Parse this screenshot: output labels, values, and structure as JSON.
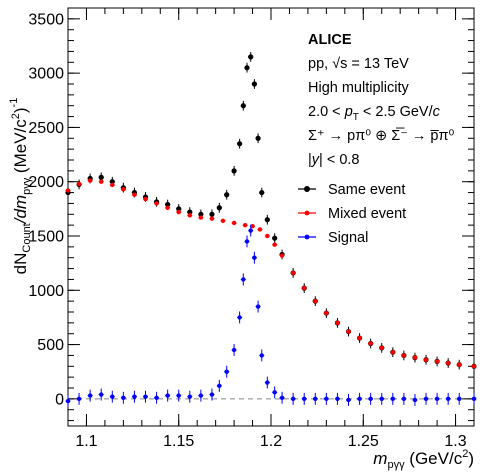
{
  "chart_data": {
    "type": "scatter",
    "xlabel": {
      "main": "m",
      "sub": "pγγ",
      "unit": " (GeV/c",
      "unit_sup": "2",
      "unit_end": ")"
    },
    "ylabel": {
      "prefix": "dN",
      "sub1": "Count",
      "mid": "/dm",
      "sub2": "pγγ",
      "unit": " (MeV/c",
      "unit_sup": "2",
      "unit_end": ")",
      "exp": "-1"
    },
    "xlim": [
      1.09,
      1.31
    ],
    "ylim": [
      -250,
      3600
    ],
    "xticks": [
      {
        "v": 1.1,
        "label": "1.1"
      },
      {
        "v": 1.15,
        "label": "1.15"
      },
      {
        "v": 1.2,
        "label": "1.2"
      },
      {
        "v": 1.25,
        "label": "1.25"
      },
      {
        "v": 1.3,
        "label": "1.3"
      }
    ],
    "yticks": [
      {
        "v": 0,
        "label": "0"
      },
      {
        "v": 500,
        "label": "500"
      },
      {
        "v": 1000,
        "label": "1000"
      },
      {
        "v": 1500,
        "label": "1500"
      },
      {
        "v": 2000,
        "label": "2000"
      },
      {
        "v": 2500,
        "label": "2500"
      },
      {
        "v": 3000,
        "label": "3000"
      },
      {
        "v": 3500,
        "label": "3500"
      }
    ],
    "grid": false,
    "legend_position": "top-right",
    "annotations": {
      "experiment": "ALICE",
      "system": "pp, √s = 13 TeV",
      "selection": "High multiplicity",
      "pt_range": {
        "pre": "2.0 < ",
        "var": "p",
        "sub": "T",
        "post": " < 2.5 GeV/",
        "unit_var": "c"
      },
      "decay": "Σ⁺ → pπ⁰ ⊕ Σ̅⁻ → p̅π⁰",
      "rapidity": {
        "pre": "|",
        "var": "y",
        "post": "| < 0.8"
      }
    },
    "reference_line": {
      "y": 0,
      "style": "dashed",
      "color": "#888888"
    },
    "series": [
      {
        "name": "Same event",
        "color": "#000000",
        "marker": "circle",
        "x": [
          1.09,
          1.096,
          1.102,
          1.108,
          1.114,
          1.12,
          1.126,
          1.132,
          1.138,
          1.144,
          1.15,
          1.156,
          1.162,
          1.168,
          1.172,
          1.176,
          1.18,
          1.183,
          1.185,
          1.187,
          1.189,
          1.191,
          1.193,
          1.195,
          1.198,
          1.202,
          1.206,
          1.212,
          1.218,
          1.224,
          1.23,
          1.236,
          1.242,
          1.248,
          1.254,
          1.26,
          1.266,
          1.272,
          1.278,
          1.284,
          1.29,
          1.296,
          1.302,
          1.31
        ],
        "y": [
          1900,
          1975,
          2030,
          2040,
          2000,
          1945,
          1900,
          1860,
          1815,
          1790,
          1750,
          1720,
          1700,
          1700,
          1760,
          1880,
          2100,
          2350,
          2700,
          3050,
          3150,
          2900,
          2400,
          1900,
          1650,
          1480,
          1330,
          1160,
          1020,
          900,
          790,
          700,
          620,
          560,
          510,
          470,
          430,
          400,
          380,
          360,
          345,
          330,
          315,
          300
        ],
        "err": 45
      },
      {
        "name": "Mixed event",
        "color": "#ff0000",
        "marker": "circle",
        "x": [
          1.09,
          1.096,
          1.102,
          1.108,
          1.114,
          1.12,
          1.126,
          1.132,
          1.138,
          1.144,
          1.15,
          1.156,
          1.162,
          1.168,
          1.174,
          1.18,
          1.186,
          1.19,
          1.194,
          1.198,
          1.202,
          1.206,
          1.212,
          1.218,
          1.224,
          1.23,
          1.236,
          1.242,
          1.248,
          1.254,
          1.26,
          1.266,
          1.272,
          1.278,
          1.284,
          1.29,
          1.296,
          1.302,
          1.31
        ],
        "y": [
          1920,
          1980,
          2010,
          2000,
          1970,
          1930,
          1880,
          1840,
          1800,
          1760,
          1720,
          1690,
          1670,
          1660,
          1640,
          1620,
          1600,
          1590,
          1560,
          1500,
          1420,
          1320,
          1160,
          1020,
          900,
          790,
          700,
          620,
          560,
          510,
          470,
          430,
          400,
          380,
          360,
          345,
          330,
          315,
          300
        ],
        "err": 12
      },
      {
        "name": "Signal",
        "color": "#0000ff",
        "marker": "circle",
        "x": [
          1.09,
          1.096,
          1.102,
          1.108,
          1.114,
          1.12,
          1.126,
          1.132,
          1.138,
          1.144,
          1.15,
          1.156,
          1.162,
          1.168,
          1.172,
          1.176,
          1.18,
          1.183,
          1.185,
          1.187,
          1.189,
          1.191,
          1.193,
          1.195,
          1.198,
          1.202,
          1.206,
          1.212,
          1.218,
          1.224,
          1.23,
          1.236,
          1.242,
          1.248,
          1.254,
          1.26,
          1.266,
          1.272,
          1.278,
          1.284,
          1.29,
          1.296,
          1.302,
          1.31
        ],
        "y": [
          -20,
          0,
          30,
          40,
          20,
          10,
          20,
          20,
          10,
          30,
          30,
          20,
          30,
          40,
          120,
          250,
          450,
          750,
          1100,
          1450,
          1550,
          1300,
          850,
          400,
          150,
          60,
          10,
          0,
          0,
          0,
          0,
          0,
          -10,
          0,
          0,
          0,
          0,
          0,
          -10,
          0,
          0,
          0,
          0,
          0
        ],
        "err": 55
      }
    ]
  }
}
